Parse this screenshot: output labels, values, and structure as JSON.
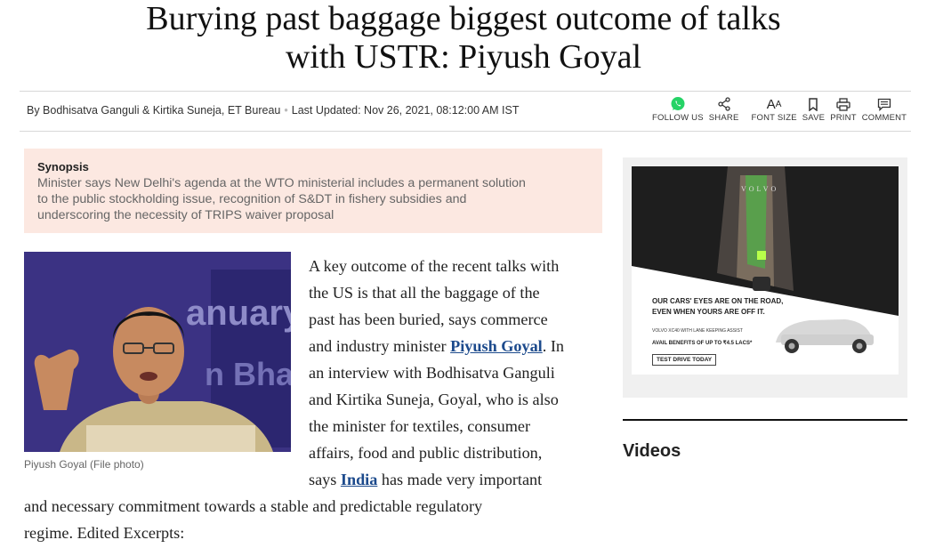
{
  "article": {
    "headline_line1": "Burying past baggage biggest outcome of talks",
    "headline_line2": "with USTR: Piyush Goyal",
    "byline": {
      "authors": "By Bodhisatva Ganguli & Kirtika Suneja, ET Bureau",
      "updated": "Last Updated: Nov 26, 2021, 08:12:00 AM IST"
    },
    "synopsis": {
      "title": "Synopsis",
      "line1": "Minister says New Delhi's agenda at the WTO ministerial includes a permanent solution",
      "line2": "to the public stockholding issue, recognition of S&DT in fishery subsidies and",
      "line3": "underscoring the necessity of TRIPS waiver proposal"
    },
    "photo_caption": "Piyush Goyal (File photo)",
    "photo_backdrop_text_1": "anuary",
    "photo_backdrop_text_2": "n Bhaw",
    "body": {
      "l1": "A key outcome of the recent talks with",
      "l2": "the US is that all the baggage of the",
      "l3": "past has been buried, says commerce",
      "l4_pre": "and industry minister ",
      "l4_link": "Piyush Goyal",
      "l4_post": ". In",
      "l5": "an interview with Bodhisatva Ganguli",
      "l6": "and Kirtika Suneja, Goyal, who is also",
      "l7": "the minister for textiles, consumer",
      "l8": "affairs, food and public distribution,",
      "l9_pre": "says ",
      "l9_link": "India",
      "l9_post": " has made very important",
      "l10": "and necessary commitment towards a stable and predictable regulatory",
      "l11": "regime. Edited Excerpts:"
    }
  },
  "toolbar": {
    "follow_label": "FOLLOW US",
    "share_label": "SHARE",
    "fontsize_label": "FONT SIZE",
    "save_label": "SAVE",
    "print_label": "PRINT",
    "comment_label": "COMMENT",
    "fontsize_glyph": "A",
    "fontsize_glyph_small": "A"
  },
  "ad": {
    "brand": "VOLVO",
    "headline_1": "OUR CARS' EYES ARE ON THE ROAD,",
    "headline_2": "EVEN WHEN YOURS ARE OFF IT.",
    "sub": "VOLVO XC40 WITH LANE KEEPING ASSIST",
    "avail": "AVAIL BENEFITS OF UP TO ₹4.5 LACS*",
    "cta": "TEST DRIVE TODAY"
  },
  "sidebar": {
    "videos_title": "Videos"
  },
  "colors": {
    "synopsis_bg": "#fce8e1",
    "link": "#1c4a8c",
    "whatsapp": "#25d366",
    "photo_bg": "#3a3180"
  },
  "icons": [
    "whatsapp-icon",
    "share-icon",
    "font-size-icon",
    "bookmark-icon",
    "print-icon",
    "comment-icon"
  ]
}
